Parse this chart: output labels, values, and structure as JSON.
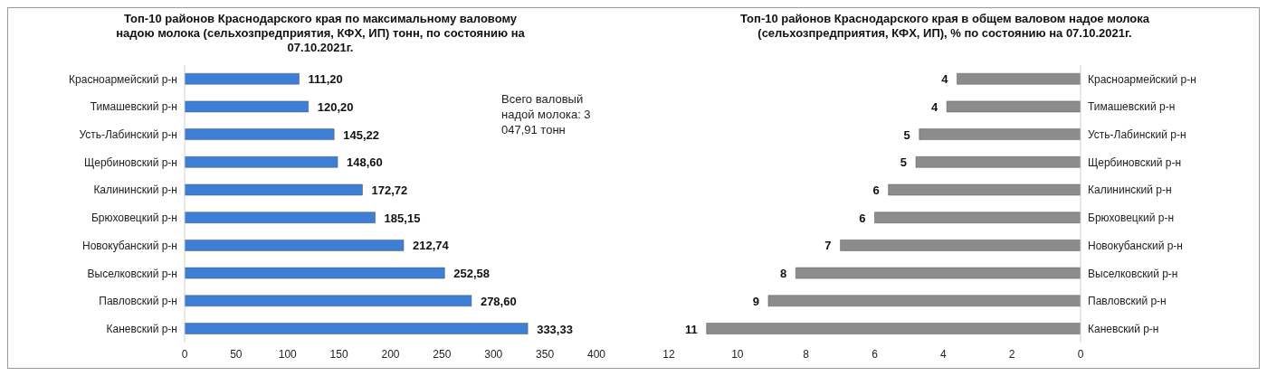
{
  "chart_data": [
    {
      "type": "bar",
      "orientation": "horizontal",
      "title": "Топ-10 районов Краснодарского края по максимальному валовому надою молока (сельхозпредприятия, КФХ, ИП) тонн, по состоянию на 07.10.2021г.",
      "categories": [
        "Красноармейский р-н",
        "Тимашевский р-н",
        "Усть-Лабинский р-н",
        "Щербиновский р-н",
        "Калининский р-н",
        "Брюховецкий р-н",
        "Новокубанский р-н",
        "Выселковский р-н",
        "Павловский р-н",
        "Каневский р-н"
      ],
      "values": [
        111.2,
        120.2,
        145.22,
        148.6,
        172.72,
        185.15,
        212.74,
        252.58,
        278.6,
        333.33
      ],
      "value_labels": [
        "111,20",
        "120,20",
        "145,22",
        "148,60",
        "172,72",
        "185,15",
        "212,74",
        "252,58",
        "278,60",
        "333,33"
      ],
      "color": "#3d7fd6",
      "xlim": [
        0,
        400
      ],
      "xticks": [
        0,
        50,
        100,
        150,
        200,
        250,
        300,
        350,
        400
      ],
      "grid": false,
      "legend": false,
      "annotations": [
        "Всего валовый надой молока: 3 047,91 тонн"
      ]
    },
    {
      "type": "bar",
      "orientation": "horizontal",
      "title": "Топ-10 районов Краснодарского края в общем валовом надое молока (сельхозпредприятия, КФХ, ИП), % по состоянию на 07.10.2021г.",
      "categories": [
        "Красноармейский р-н",
        "Тимашевский р-н",
        "Усть-Лабинский р-н",
        "Щербиновский р-н",
        "Калининский р-н",
        "Брюховецкий р-н",
        "Новокубанский р-н",
        "Выселковский р-н",
        "Павловский р-н",
        "Каневский р-н"
      ],
      "values": [
        3.6,
        3.9,
        4.7,
        4.8,
        5.6,
        6.0,
        7.0,
        8.3,
        9.1,
        10.9
      ],
      "value_labels": [
        "4",
        "4",
        "5",
        "5",
        "6",
        "6",
        "7",
        "8",
        "9",
        "11"
      ],
      "color": "#8c8c8c",
      "xlim": [
        12,
        0
      ],
      "xticks": [
        12,
        10,
        8,
        6,
        4,
        2,
        0
      ],
      "grid": false,
      "legend": false
    }
  ]
}
